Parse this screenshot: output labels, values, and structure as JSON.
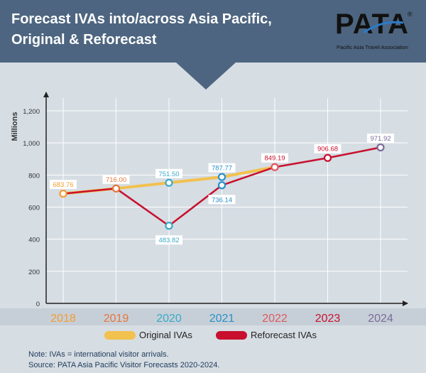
{
  "header": {
    "title_line1": "Forecast IVAs into/across Asia Pacific,",
    "title_line2": "Original & Reforecast",
    "logo_text": "PATA",
    "logo_reg": "®",
    "logo_subtitle": "Pacific Asia Travel Association"
  },
  "colors": {
    "banner": "#4d6580",
    "original": "#f2c14e",
    "reforecast": "#c8102e"
  },
  "legend": {
    "original": "Original IVAs",
    "reforecast": "Reforecast IVAs"
  },
  "footer": {
    "note": "Note: IVAs = international visitor arrivals.",
    "source": "Source: PATA Asia Pacific Visitor Forecasts 2020-2024."
  },
  "chart_data": {
    "type": "line",
    "title": "Forecast IVAs into/across Asia Pacific, Original & Reforecast",
    "ylabel": "Millions",
    "xlabel": "",
    "ylim": [
      0,
      1200
    ],
    "yticks": [
      0,
      200,
      400,
      600,
      800,
      1000,
      1200
    ],
    "ytick_labels": [
      "0",
      "200",
      "400",
      "600",
      "800",
      "1,000",
      "1,200"
    ],
    "categories": [
      "2018",
      "2019",
      "2020",
      "2021",
      "2022",
      "2023",
      "2024"
    ],
    "category_colors": [
      "#f39c32",
      "#e8763a",
      "#3aa9c9",
      "#2b8fc9",
      "#e0595f",
      "#c8102e",
      "#7a6b9a"
    ],
    "grid": true,
    "legend_position": "bottom",
    "series": [
      {
        "name": "Original IVAs",
        "color": "#f2c14e",
        "values": [
          683.76,
          716.0,
          751.5,
          787.77,
          849.19,
          null,
          null
        ]
      },
      {
        "name": "Reforecast IVAs",
        "color": "#c8102e",
        "values": [
          683.76,
          716.0,
          483.82,
          736.14,
          849.19,
          906.68,
          971.92
        ]
      }
    ],
    "data_labels": [
      {
        "text": "683.76",
        "x": "2018",
        "y": 683.76,
        "color": "#f39c32",
        "place": "above"
      },
      {
        "text": "716.00",
        "x": "2019",
        "y": 716.0,
        "color": "#e8763a",
        "place": "above"
      },
      {
        "text": "751.50",
        "x": "2020",
        "y": 751.5,
        "color": "#3aa9c9",
        "place": "above"
      },
      {
        "text": "483.82",
        "x": "2020",
        "y": 483.82,
        "color": "#3aa9c9",
        "place": "below"
      },
      {
        "text": "787.77",
        "x": "2021",
        "y": 787.77,
        "color": "#2b8fc9",
        "place": "above"
      },
      {
        "text": "736.14",
        "x": "2021",
        "y": 736.14,
        "color": "#2b8fc9",
        "place": "below"
      },
      {
        "text": "849.19",
        "x": "2022",
        "y": 849.19,
        "color": "#c8102e",
        "place": "above"
      },
      {
        "text": "906.68",
        "x": "2023",
        "y": 906.68,
        "color": "#c8102e",
        "place": "above"
      },
      {
        "text": "971.92",
        "x": "2024",
        "y": 971.92,
        "color": "#7a6b9a",
        "place": "above"
      }
    ]
  }
}
